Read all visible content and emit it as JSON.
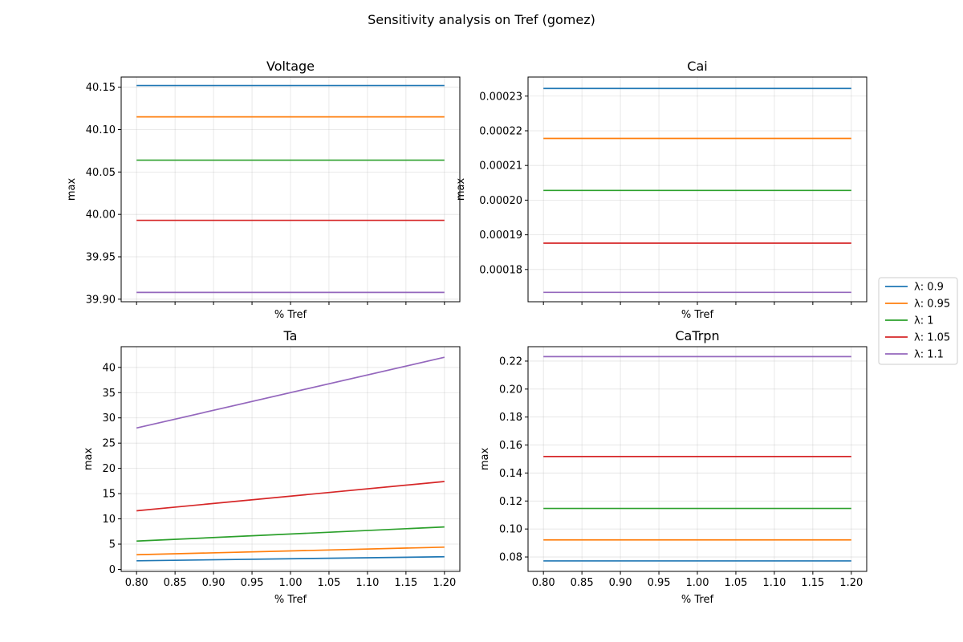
{
  "figure": {
    "suptitle": "Sensitivity analysis on Tref (gomez)"
  },
  "legend": {
    "placement": "right-center",
    "entries": [
      {
        "label": "λ: 0.9",
        "color": "#1f77b4"
      },
      {
        "label": "λ: 0.95",
        "color": "#ff7f0e"
      },
      {
        "label": "λ: 1",
        "color": "#2ca02c"
      },
      {
        "label": "λ: 1.05",
        "color": "#d62728"
      },
      {
        "label": "λ: 1.1",
        "color": "#9467bd"
      }
    ]
  },
  "chart_data": [
    {
      "type": "line",
      "title": "Voltage",
      "xlabel": "% Tref",
      "ylabel": "max",
      "x": [
        0.8,
        1.2
      ],
      "xticks": [
        "0.80",
        "0.85",
        "0.90",
        "0.95",
        "1.00",
        "1.05",
        "1.10",
        "1.15",
        "1.20"
      ],
      "xticklabels_visible": false,
      "yticks": [
        "39.90",
        "39.95",
        "40.00",
        "40.05",
        "40.10",
        "40.15"
      ],
      "ylim": [
        39.897,
        40.162
      ],
      "grid": true,
      "series": [
        {
          "name": "λ: 0.9",
          "color": "#1f77b4",
          "values": [
            40.152,
            40.152
          ]
        },
        {
          "name": "λ: 0.95",
          "color": "#ff7f0e",
          "values": [
            40.115,
            40.115
          ]
        },
        {
          "name": "λ: 1",
          "color": "#2ca02c",
          "values": [
            40.064,
            40.064
          ]
        },
        {
          "name": "λ: 1.05",
          "color": "#d62728",
          "values": [
            39.993,
            39.993
          ]
        },
        {
          "name": "λ: 1.1",
          "color": "#9467bd",
          "values": [
            39.908,
            39.908
          ]
        }
      ]
    },
    {
      "type": "line",
      "title": "Cai",
      "xlabel": "% Tref",
      "ylabel": "max",
      "x": [
        0.8,
        1.2
      ],
      "xticks": [
        "0.80",
        "0.85",
        "0.90",
        "0.95",
        "1.00",
        "1.05",
        "1.10",
        "1.15",
        "1.20"
      ],
      "xticklabels_visible": false,
      "yticks": [
        "0.00018",
        "0.00019",
        "0.00020",
        "0.00021",
        "0.00022",
        "0.00023"
      ],
      "ylim": [
        0.0001707,
        0.0002355
      ],
      "grid": true,
      "series": [
        {
          "name": "λ: 0.9",
          "color": "#1f77b4",
          "values": [
            0.0002322,
            0.0002322
          ]
        },
        {
          "name": "λ: 0.95",
          "color": "#ff7f0e",
          "values": [
            0.0002178,
            0.0002178
          ]
        },
        {
          "name": "λ: 1",
          "color": "#2ca02c",
          "values": [
            0.0002028,
            0.0002028
          ]
        },
        {
          "name": "λ: 1.05",
          "color": "#d62728",
          "values": [
            0.0001876,
            0.0001876
          ]
        },
        {
          "name": "λ: 1.1",
          "color": "#9467bd",
          "values": [
            0.0001734,
            0.0001734
          ]
        }
      ]
    },
    {
      "type": "line",
      "title": "Ta",
      "xlabel": "% Tref",
      "ylabel": "max",
      "x": [
        0.8,
        1.2
      ],
      "xticks": [
        "0.80",
        "0.85",
        "0.90",
        "0.95",
        "1.00",
        "1.05",
        "1.10",
        "1.15",
        "1.20"
      ],
      "xticklabels_visible": true,
      "yticks": [
        "0",
        "5",
        "10",
        "15",
        "20",
        "25",
        "30",
        "35",
        "40"
      ],
      "ylim": [
        -0.4,
        44.1
      ],
      "grid": true,
      "series": [
        {
          "name": "λ: 0.9",
          "color": "#1f77b4",
          "values": [
            1.7,
            2.5
          ]
        },
        {
          "name": "λ: 0.95",
          "color": "#ff7f0e",
          "values": [
            2.9,
            4.4
          ]
        },
        {
          "name": "λ: 1",
          "color": "#2ca02c",
          "values": [
            5.6,
            8.4
          ]
        },
        {
          "name": "λ: 1.05",
          "color": "#d62728",
          "values": [
            11.6,
            17.4
          ]
        },
        {
          "name": "λ: 1.1",
          "color": "#9467bd",
          "values": [
            28.0,
            42.0
          ]
        }
      ]
    },
    {
      "type": "line",
      "title": "CaTrpn",
      "xlabel": "% Tref",
      "ylabel": "max",
      "x": [
        0.8,
        1.2
      ],
      "xticks": [
        "0.80",
        "0.85",
        "0.90",
        "0.95",
        "1.00",
        "1.05",
        "1.10",
        "1.15",
        "1.20"
      ],
      "xticklabels_visible": true,
      "yticks": [
        "0.08",
        "0.10",
        "0.12",
        "0.14",
        "0.16",
        "0.18",
        "0.20",
        "0.22"
      ],
      "ylim": [
        0.0697,
        0.2303
      ],
      "grid": true,
      "series": [
        {
          "name": "λ: 0.9",
          "color": "#1f77b4",
          "values": [
            0.0772,
            0.0772
          ]
        },
        {
          "name": "λ: 0.95",
          "color": "#ff7f0e",
          "values": [
            0.0922,
            0.0922
          ]
        },
        {
          "name": "λ: 1",
          "color": "#2ca02c",
          "values": [
            0.1147,
            0.1147
          ]
        },
        {
          "name": "λ: 1.05",
          "color": "#d62728",
          "values": [
            0.1518,
            0.1518
          ]
        },
        {
          "name": "λ: 1.1",
          "color": "#9467bd",
          "values": [
            0.2232,
            0.2232
          ]
        }
      ]
    }
  ]
}
